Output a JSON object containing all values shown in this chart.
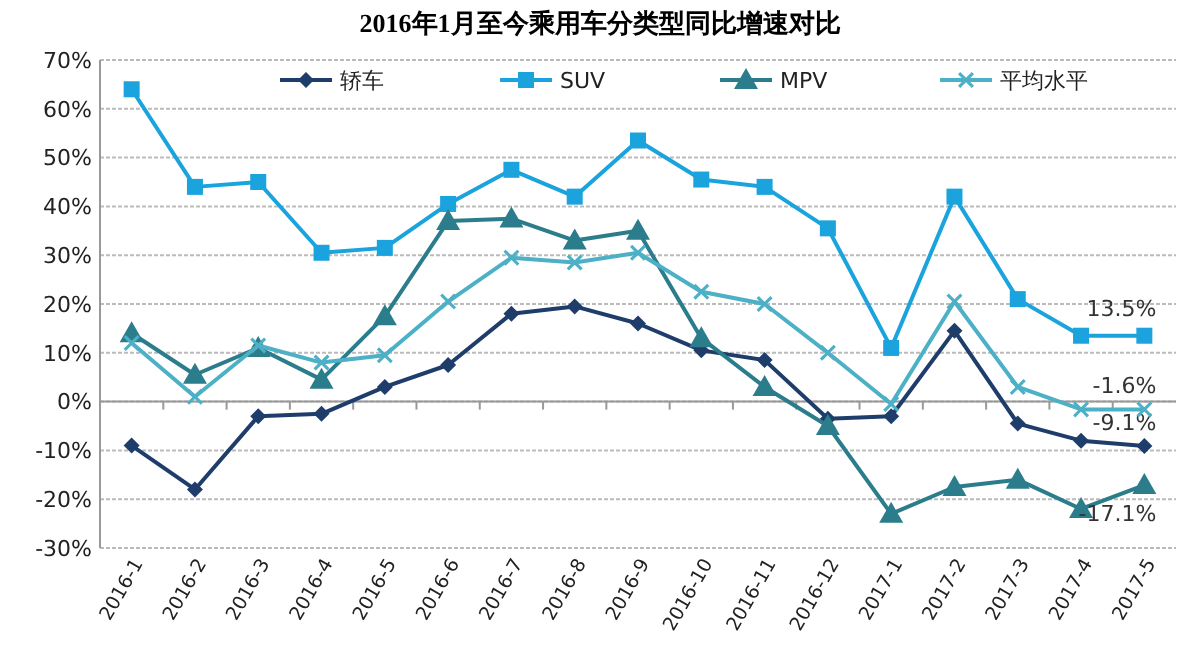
{
  "chart_data": {
    "type": "line",
    "title": "2016年1月至今乘用车分类型同比增速对比",
    "categories": [
      "2016-1",
      "2016-2",
      "2016-3",
      "2016-4",
      "2016-5",
      "2016-6",
      "2016-7",
      "2016-8",
      "2016-9",
      "2016-10",
      "2016-11",
      "2016-12",
      "2017-1",
      "2017-2",
      "2017-3",
      "2017-4",
      "2017-5"
    ],
    "series": [
      {
        "name": "轿车",
        "color": "#1f3d6b",
        "marker": "diamond",
        "values": [
          -9,
          -18,
          -3,
          -2.5,
          3,
          7.5,
          18,
          19.5,
          16,
          10.5,
          8.5,
          -3.5,
          -3,
          14.5,
          -4.5,
          -8,
          -9.1
        ],
        "value_labels": [
          null,
          null,
          null,
          null,
          null,
          null,
          null,
          null,
          null,
          null,
          null,
          null,
          null,
          null,
          null,
          null,
          "-9.1%"
        ]
      },
      {
        "name": "SUV",
        "color": "#1aa3dc",
        "marker": "square",
        "values": [
          64,
          44,
          45,
          30.5,
          31.5,
          40.5,
          47.5,
          42,
          53.5,
          45.5,
          44,
          35.5,
          11,
          42,
          21,
          13.5,
          13.5
        ],
        "value_labels": [
          null,
          null,
          null,
          null,
          null,
          null,
          null,
          null,
          null,
          null,
          null,
          null,
          null,
          null,
          null,
          null,
          "13.5%"
        ]
      },
      {
        "name": "MPV",
        "color": "#2b7d8c",
        "marker": "triangle",
        "values": [
          14,
          5.5,
          11,
          4.5,
          17.5,
          37,
          37.5,
          33,
          35,
          13,
          3,
          -5,
          -23,
          -17.5,
          -16,
          -22,
          -17.1
        ],
        "value_labels": [
          null,
          null,
          null,
          null,
          null,
          null,
          null,
          null,
          null,
          null,
          null,
          null,
          null,
          null,
          null,
          null,
          "-17.1%"
        ]
      },
      {
        "name": "平均水平",
        "color": "#4cb0c6",
        "marker": "cross",
        "values": [
          12,
          1,
          11.5,
          8,
          9.5,
          20.5,
          29.5,
          28.5,
          30.5,
          22.5,
          20,
          10,
          -0.5,
          20.5,
          3,
          -1.6,
          -1.6
        ],
        "value_labels": [
          null,
          null,
          null,
          null,
          null,
          null,
          null,
          null,
          null,
          null,
          null,
          null,
          null,
          null,
          null,
          null,
          "-1.6%"
        ]
      }
    ],
    "ylim": [
      -30,
      70
    ],
    "yticks": [
      {
        "value": -30,
        "label": "-30%"
      },
      {
        "value": -20,
        "label": "-20%"
      },
      {
        "value": -10,
        "label": "-10%"
      },
      {
        "value": 0,
        "label": "0%"
      },
      {
        "value": 10,
        "label": "10%"
      },
      {
        "value": 20,
        "label": "20%"
      },
      {
        "value": 30,
        "label": "30%"
      },
      {
        "value": 40,
        "label": "40%"
      },
      {
        "value": 50,
        "label": "50%"
      },
      {
        "value": 60,
        "label": "60%"
      },
      {
        "value": 70,
        "label": "70%"
      }
    ],
    "grid": "y",
    "legend": "top",
    "line_style": "solid"
  }
}
